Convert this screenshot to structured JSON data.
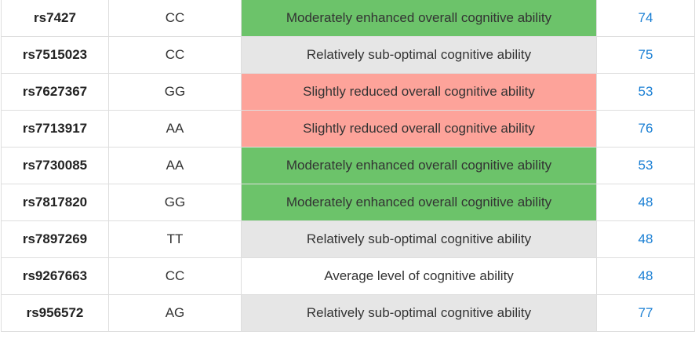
{
  "table": {
    "rows": [
      {
        "rsid": "rs7427",
        "genotype": "CC",
        "interpretation": "Moderately enhanced overall cognitive ability",
        "tone": "green",
        "score": "74"
      },
      {
        "rsid": "rs7515023",
        "genotype": "CC",
        "interpretation": "Relatively sub-optimal cognitive ability",
        "tone": "gray",
        "score": "75"
      },
      {
        "rsid": "rs7627367",
        "genotype": "GG",
        "interpretation": "Slightly reduced overall cognitive ability",
        "tone": "red",
        "score": "53"
      },
      {
        "rsid": "rs7713917",
        "genotype": "AA",
        "interpretation": "Slightly reduced overall cognitive ability",
        "tone": "red",
        "score": "76"
      },
      {
        "rsid": "rs7730085",
        "genotype": "AA",
        "interpretation": "Moderately enhanced overall cognitive ability",
        "tone": "green",
        "score": "53"
      },
      {
        "rsid": "rs7817820",
        "genotype": "GG",
        "interpretation": "Moderately enhanced overall cognitive ability",
        "tone": "green",
        "score": "48"
      },
      {
        "rsid": "rs7897269",
        "genotype": "TT",
        "interpretation": "Relatively sub-optimal cognitive ability",
        "tone": "gray",
        "score": "48"
      },
      {
        "rsid": "rs9267663",
        "genotype": "CC",
        "interpretation": "Average level of cognitive ability",
        "tone": "white",
        "score": "48"
      },
      {
        "rsid": "rs956572",
        "genotype": "AG",
        "interpretation": "Relatively sub-optimal cognitive ability",
        "tone": "gray",
        "score": "77"
      }
    ]
  },
  "colors": {
    "enhanced": "#6cc36a",
    "reduced": "#fda39a",
    "suboptimal": "#e6e6e6",
    "average": "#ffffff",
    "score_link": "#1a7fd4"
  }
}
